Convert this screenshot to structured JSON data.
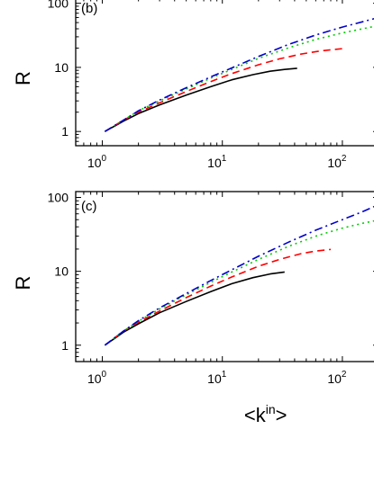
{
  "chart_data": [
    {
      "type": "line",
      "panel_label": "(b)",
      "title": "",
      "xlabel": "",
      "ylabel": "R",
      "xscale": "log",
      "yscale": "log",
      "xlim": [
        0.6,
        200
      ],
      "ylim": [
        0.6,
        120
      ],
      "x_ticks": [
        {
          "base": "10",
          "exp": "0"
        },
        {
          "base": "10",
          "exp": "1"
        },
        {
          "base": "10",
          "exp": "2"
        }
      ],
      "y_ticks": [
        "1",
        "10",
        "100"
      ],
      "grid": false,
      "series": [
        {
          "color": "#000000",
          "dash": "solid",
          "x": [
            1.05,
            1.5,
            2,
            3,
            5,
            8,
            12,
            18,
            25,
            33,
            42
          ],
          "y": [
            1.0,
            1.45,
            1.9,
            2.6,
            3.7,
            5.0,
            6.4,
            7.7,
            8.7,
            9.3,
            9.7
          ]
        },
        {
          "color": "#ff0000",
          "dash": "dashed",
          "x": [
            1.05,
            1.5,
            2,
            3,
            5,
            8,
            12,
            20,
            30,
            45,
            65,
            100
          ],
          "y": [
            1.0,
            1.5,
            2.0,
            2.8,
            4.2,
            6.0,
            8.0,
            11.0,
            13.6,
            16.1,
            18.0,
            19.6
          ]
        },
        {
          "color": "#00cc00",
          "dash": "dotted",
          "x": [
            1.05,
            1.5,
            2,
            3,
            5,
            8,
            12,
            20,
            35,
            60,
            100,
            150,
            200
          ],
          "y": [
            1.0,
            1.5,
            2.1,
            3.0,
            4.6,
            6.8,
            9.3,
            13.8,
            20.0,
            27.3,
            34.5,
            40.3,
            45.0
          ]
        },
        {
          "color": "#0000cc",
          "dash": "dashdot",
          "x": [
            1.05,
            1.5,
            2,
            3,
            5,
            8,
            12,
            20,
            35,
            60,
            100,
            150,
            200
          ],
          "y": [
            1.0,
            1.5,
            2.1,
            3.1,
            4.8,
            7.1,
            9.8,
            14.8,
            22.5,
            32.0,
            42.5,
            52.0,
            60.0
          ]
        }
      ]
    },
    {
      "type": "line",
      "panel_label": "(c)",
      "title": "",
      "xlabel": "<k^in>",
      "ylabel": "R",
      "xscale": "log",
      "yscale": "log",
      "xlim": [
        0.6,
        200
      ],
      "ylim": [
        0.6,
        120
      ],
      "x_ticks": [
        {
          "base": "10",
          "exp": "0"
        },
        {
          "base": "10",
          "exp": "1"
        },
        {
          "base": "10",
          "exp": "2"
        }
      ],
      "y_ticks": [
        "1",
        "10",
        "100"
      ],
      "grid": false,
      "series": [
        {
          "color": "#000000",
          "dash": "solid",
          "x": [
            1.05,
            1.5,
            2,
            3,
            5,
            8,
            12,
            18,
            25,
            33
          ],
          "y": [
            1.0,
            1.5,
            1.95,
            2.75,
            3.9,
            5.3,
            6.8,
            8.2,
            9.2,
            9.8
          ]
        },
        {
          "color": "#ff0000",
          "dash": "dashed",
          "x": [
            1.05,
            1.5,
            2,
            3,
            5,
            8,
            12,
            20,
            30,
            45,
            60,
            80
          ],
          "y": [
            1.0,
            1.55,
            2.05,
            2.9,
            4.4,
            6.3,
            8.4,
            11.7,
            14.5,
            17.3,
            18.8,
            19.8
          ]
        },
        {
          "color": "#00cc00",
          "dash": "dotted",
          "x": [
            1.05,
            1.5,
            2,
            3,
            5,
            8,
            12,
            20,
            35,
            60,
            100,
            150,
            200
          ],
          "y": [
            1.0,
            1.55,
            2.1,
            3.1,
            4.8,
            7.1,
            9.8,
            14.5,
            21.5,
            30.0,
            38.5,
            45.0,
            49.5
          ]
        },
        {
          "color": "#0000cc",
          "dash": "dashdot",
          "x": [
            1.05,
            1.5,
            2,
            3,
            5,
            8,
            12,
            20,
            35,
            60,
            100,
            150,
            200
          ],
          "y": [
            1.0,
            1.55,
            2.15,
            3.2,
            5.0,
            7.5,
            10.5,
            16.0,
            24.5,
            36.0,
            50.0,
            65.0,
            80.0
          ]
        }
      ]
    }
  ]
}
